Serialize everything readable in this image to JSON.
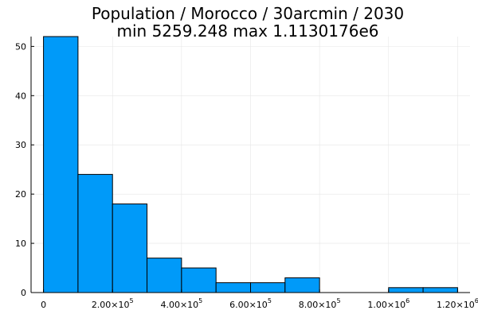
{
  "chart_data": {
    "type": "histogram",
    "title": "Population / Morocco / 30arcmin / 2030",
    "subtitle": "min 5259.248  max 1.1130176e6",
    "bin_width": 100000,
    "bins": [
      {
        "x0": 0,
        "x1": 100000,
        "count": 52
      },
      {
        "x0": 100000,
        "x1": 200000,
        "count": 24
      },
      {
        "x0": 200000,
        "x1": 300000,
        "count": 18
      },
      {
        "x0": 300000,
        "x1": 400000,
        "count": 7
      },
      {
        "x0": 400000,
        "x1": 500000,
        "count": 5
      },
      {
        "x0": 500000,
        "x1": 600000,
        "count": 2
      },
      {
        "x0": 600000,
        "x1": 700000,
        "count": 2
      },
      {
        "x0": 700000,
        "x1": 800000,
        "count": 3
      },
      {
        "x0": 800000,
        "x1": 900000,
        "count": 0
      },
      {
        "x0": 900000,
        "x1": 1000000,
        "count": 0
      },
      {
        "x0": 1000000,
        "x1": 1100000,
        "count": 1
      },
      {
        "x0": 1100000,
        "x1": 1200000,
        "count": 1
      }
    ],
    "xlim": [
      -36000,
      1236000
    ],
    "ylim": [
      0,
      52
    ],
    "x_ticks": [
      {
        "value": 0,
        "mantissa": "0",
        "exponent": ""
      },
      {
        "value": 200000,
        "mantissa": "2.00×10",
        "exponent": "5"
      },
      {
        "value": 400000,
        "mantissa": "4.00×10",
        "exponent": "5"
      },
      {
        "value": 600000,
        "mantissa": "6.00×10",
        "exponent": "5"
      },
      {
        "value": 800000,
        "mantissa": "8.00×10",
        "exponent": "5"
      },
      {
        "value": 1000000,
        "mantissa": "1.00×10",
        "exponent": "6"
      },
      {
        "value": 1200000,
        "mantissa": "1.20×10",
        "exponent": "6"
      }
    ],
    "y_ticks": [
      {
        "value": 0,
        "label": "0"
      },
      {
        "value": 10,
        "label": "10"
      },
      {
        "value": 20,
        "label": "20"
      },
      {
        "value": 30,
        "label": "30"
      },
      {
        "value": 40,
        "label": "40"
      },
      {
        "value": 50,
        "label": "50"
      }
    ],
    "bar_color": "#009af9",
    "grid": true,
    "legend": "none"
  }
}
